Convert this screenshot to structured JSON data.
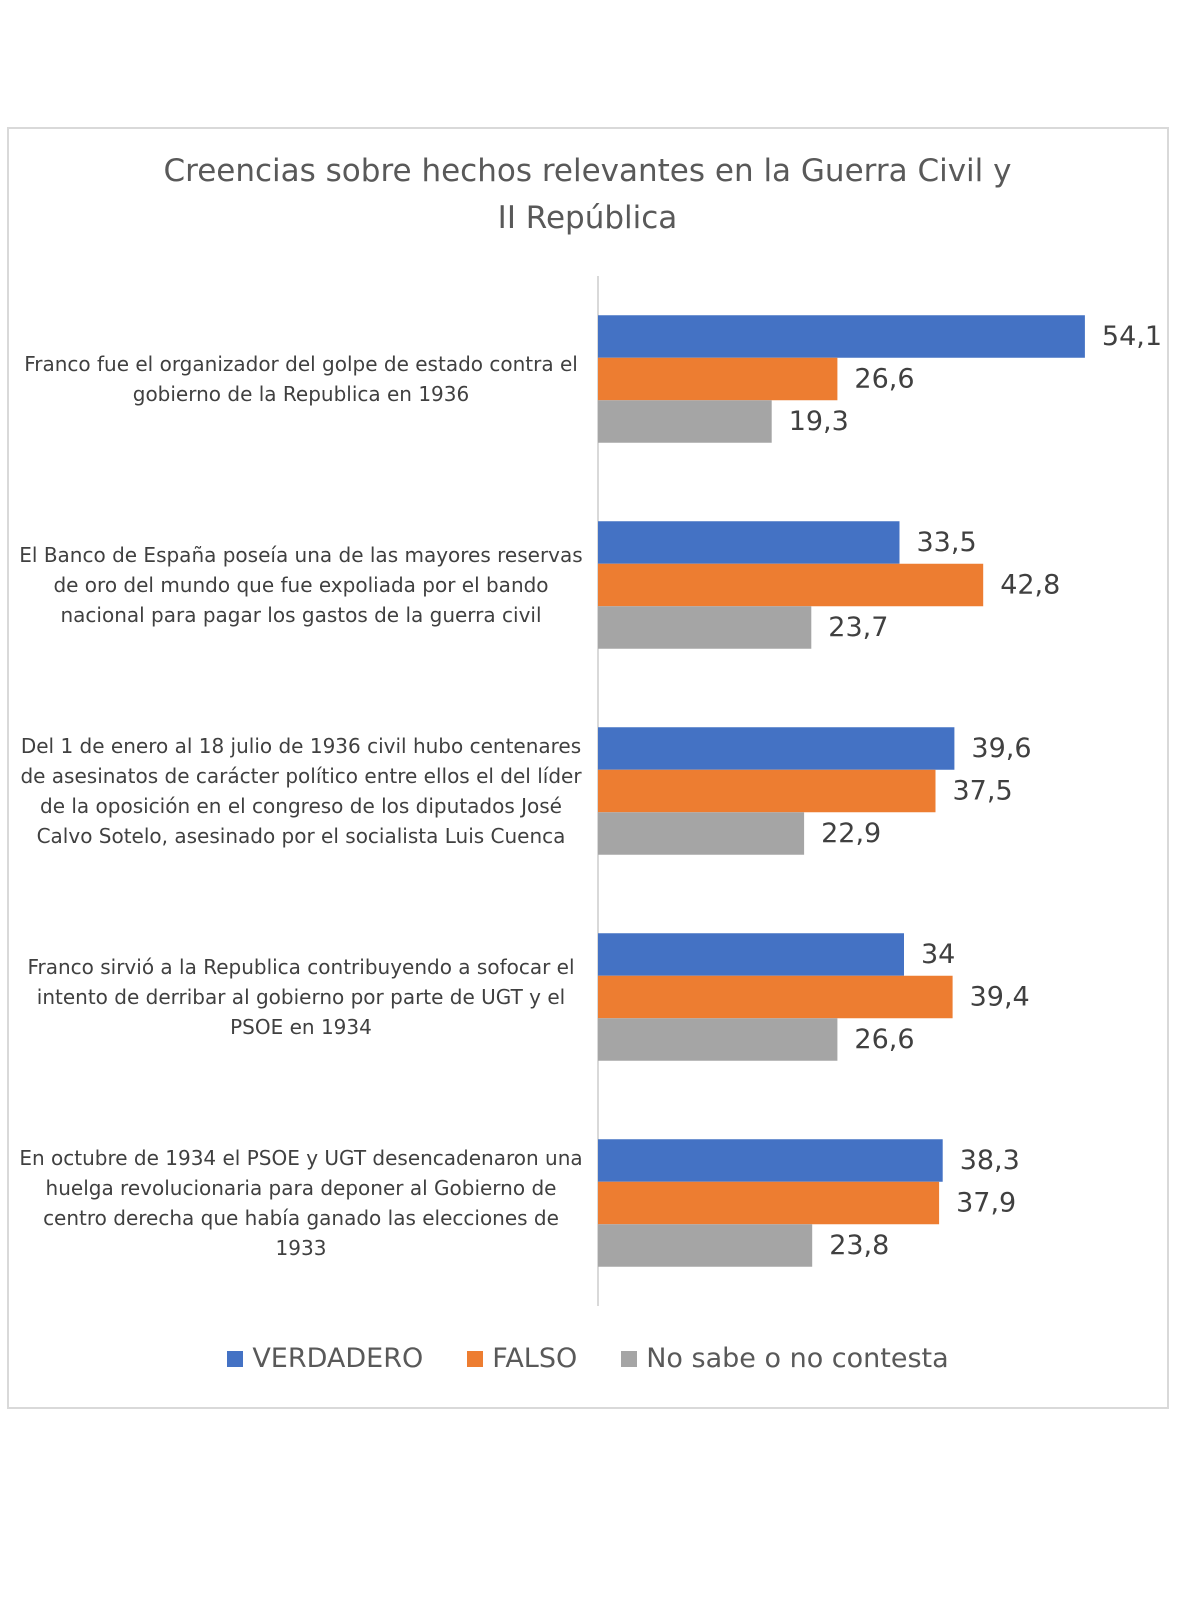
{
  "chart_data": {
    "type": "hbar",
    "title": "Creencias sobre hechos relevantes en la Guerra Civil y II República",
    "categories": [
      "Franco fue el organizador del golpe de estado contra el gobierno de la Republica en 1936",
      "El Banco de España poseía una de las mayores reservas de oro del mundo que fue expoliada por el bando nacional para pagar los gastos de la guerra civil",
      "Del 1 de enero al 18 julio de 1936 civil hubo centenares de asesinatos de carácter político entre ellos el del líder de la oposición en el congreso de los diputados José Calvo Sotelo, asesinado por el socialista Luis Cuenca",
      "Franco sirvió a la Republica contribuyendo a sofocar el intento de derribar al gobierno por parte de UGT y el PSOE en 1934",
      "En octubre de 1934 el PSOE y UGT desencadenaron una huelga revolucionaria para deponer al Gobierno de centro derecha que había ganado las elecciones de 1933"
    ],
    "series": [
      {
        "name": "VERDADERO",
        "color": "#4472c4",
        "values": [
          54.1,
          33.5,
          39.6,
          34,
          38.3
        ],
        "value_labels": [
          "54,1",
          "33,5",
          "39,6",
          "34",
          "38,3"
        ]
      },
      {
        "name": "FALSO",
        "color": "#ed7d31",
        "values": [
          26.6,
          42.8,
          37.5,
          39.4,
          37.9
        ],
        "value_labels": [
          "26,6",
          "42,8",
          "37,5",
          "39,4",
          "37,9"
        ]
      },
      {
        "name": "No sabe o no contesta",
        "color": "#a5a5a5",
        "values": [
          19.3,
          23.7,
          22.9,
          26.6,
          23.8
        ],
        "value_labels": [
          "19,3",
          "23,7",
          "22,9",
          "26,6",
          "23,8"
        ]
      }
    ],
    "xlim": [
      0,
      60
    ],
    "legend": "bottom"
  }
}
